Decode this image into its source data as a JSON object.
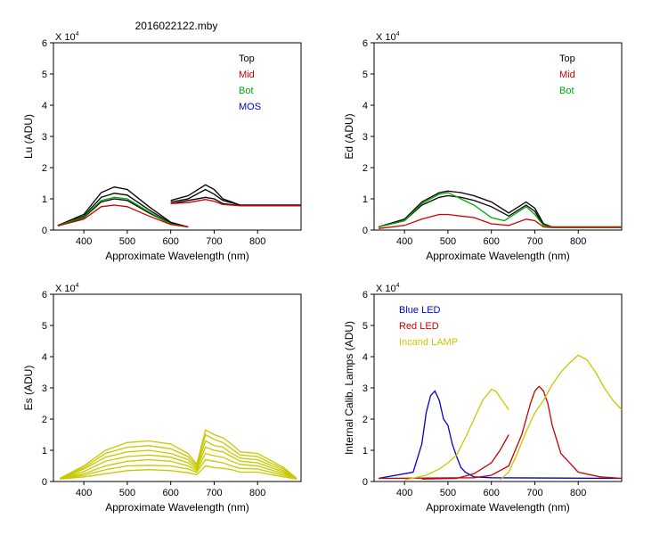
{
  "figure": {
    "title": "2016022122.mby"
  },
  "colors": {
    "black": "#000000",
    "red": "#cc0000",
    "green": "#00aa00",
    "blue": "#0000cc",
    "olive": "#c8c800"
  },
  "chart_data": [
    {
      "id": "lu",
      "type": "line",
      "ylabel": "Lu (ADU)",
      "xlabel": "Approximate Wavelength (nm)",
      "exponent_label": "X 10",
      "exponent_power": "4",
      "xlim": [
        330,
        900
      ],
      "ylim": [
        0,
        6
      ],
      "xticks": [
        400,
        500,
        600,
        700,
        800
      ],
      "yticks": [
        0,
        1,
        2,
        3,
        4,
        5,
        6
      ],
      "legend": [
        {
          "label": "Top",
          "color": "#000000"
        },
        {
          "label": "Mid",
          "color": "#cc0000"
        },
        {
          "label": "Bot",
          "color": "#00aa00"
        },
        {
          "label": "MOS",
          "color": "#0000cc"
        }
      ],
      "series": [
        {
          "name": "Top-1",
          "color": "#000000",
          "x": [
            340,
            400,
            440,
            470,
            500,
            550,
            600,
            640
          ],
          "y": [
            0.15,
            0.5,
            1.2,
            1.38,
            1.3,
            0.75,
            0.25,
            0.1
          ]
        },
        {
          "name": "Top-2",
          "color": "#000000",
          "x": [
            340,
            400,
            440,
            470,
            500,
            550,
            600,
            640
          ],
          "y": [
            0.15,
            0.45,
            1.05,
            1.18,
            1.12,
            0.65,
            0.22,
            0.1
          ]
        },
        {
          "name": "Top-3",
          "color": "#000000",
          "x": [
            340,
            400,
            440,
            470,
            500,
            550,
            600,
            640
          ],
          "y": [
            0.14,
            0.4,
            0.9,
            1.0,
            0.95,
            0.55,
            0.2,
            0.1
          ]
        },
        {
          "name": "Bot",
          "color": "#00aa00",
          "x": [
            340,
            400,
            440,
            470,
            500,
            550,
            600,
            640
          ],
          "y": [
            0.14,
            0.42,
            0.95,
            1.05,
            1.0,
            0.58,
            0.2,
            0.1
          ]
        },
        {
          "name": "Mid",
          "color": "#cc0000",
          "x": [
            340,
            400,
            440,
            470,
            500,
            550,
            600,
            640
          ],
          "y": [
            0.13,
            0.35,
            0.75,
            0.8,
            0.75,
            0.45,
            0.18,
            0.1
          ]
        },
        {
          "name": "Top-R1",
          "color": "#000000",
          "x": [
            600,
            640,
            680,
            700,
            720,
            760,
            800,
            900
          ],
          "y": [
            0.95,
            1.1,
            1.45,
            1.3,
            1.0,
            0.8,
            0.8,
            0.8
          ]
        },
        {
          "name": "Top-R2",
          "color": "#000000",
          "x": [
            600,
            640,
            680,
            700,
            720,
            760,
            800,
            900
          ],
          "y": [
            0.9,
            1.0,
            1.3,
            1.15,
            0.95,
            0.8,
            0.8,
            0.8
          ]
        },
        {
          "name": "Top-R3",
          "color": "#000000",
          "x": [
            600,
            640,
            680,
            700,
            720,
            760,
            800,
            900
          ],
          "y": [
            0.85,
            0.95,
            1.05,
            1.0,
            0.85,
            0.78,
            0.78,
            0.78
          ]
        },
        {
          "name": "Mid-R",
          "color": "#cc0000",
          "x": [
            600,
            640,
            680,
            700,
            720,
            760,
            800,
            900
          ],
          "y": [
            0.85,
            0.88,
            0.98,
            0.92,
            0.82,
            0.78,
            0.78,
            0.78
          ]
        }
      ]
    },
    {
      "id": "ed",
      "type": "line",
      "ylabel": "Ed  (ADU)",
      "xlabel": "Approximate Wavelength (nm)",
      "exponent_label": "X 10",
      "exponent_power": "4",
      "xlim": [
        330,
        900
      ],
      "ylim": [
        0,
        6
      ],
      "xticks": [
        400,
        500,
        600,
        700,
        800
      ],
      "yticks": [
        0,
        1,
        2,
        3,
        4,
        5,
        6
      ],
      "legend": [
        {
          "label": "Top",
          "color": "#000000"
        },
        {
          "label": "Mid",
          "color": "#cc0000"
        },
        {
          "label": "Bot",
          "color": "#00aa00"
        }
      ],
      "series": [
        {
          "name": "Top-1",
          "color": "#000000",
          "x": [
            340,
            400,
            440,
            480,
            500,
            530,
            560,
            600,
            640,
            680,
            700,
            720,
            740,
            760,
            900
          ],
          "y": [
            0.1,
            0.35,
            0.9,
            1.2,
            1.25,
            1.2,
            1.1,
            0.9,
            0.55,
            0.9,
            0.7,
            0.2,
            0.1,
            0.1,
            0.1
          ]
        },
        {
          "name": "Top-2",
          "color": "#000000",
          "x": [
            340,
            400,
            440,
            480,
            500,
            530,
            560,
            600,
            640,
            680,
            700,
            720,
            740,
            760,
            900
          ],
          "y": [
            0.1,
            0.3,
            0.8,
            1.05,
            1.1,
            1.05,
            0.95,
            0.75,
            0.45,
            0.8,
            0.6,
            0.15,
            0.1,
            0.1,
            0.1
          ]
        },
        {
          "name": "Bot",
          "color": "#00aa00",
          "x": [
            340,
            400,
            440,
            480,
            500,
            530,
            560,
            600,
            630,
            680,
            700,
            720,
            740,
            900
          ],
          "y": [
            0.1,
            0.3,
            0.85,
            1.15,
            1.2,
            1.0,
            0.8,
            0.4,
            0.3,
            0.75,
            0.5,
            0.15,
            0.1,
            0.1
          ]
        },
        {
          "name": "Mid",
          "color": "#cc0000",
          "x": [
            340,
            400,
            440,
            480,
            500,
            530,
            560,
            600,
            640,
            680,
            700,
            720,
            740,
            900
          ],
          "y": [
            0.05,
            0.15,
            0.35,
            0.5,
            0.5,
            0.45,
            0.4,
            0.2,
            0.15,
            0.35,
            0.3,
            0.1,
            0.08,
            0.08
          ]
        }
      ]
    },
    {
      "id": "es",
      "type": "line",
      "ylabel": "Es  (ADU)",
      "xlabel": "Approximate Wavelength (nm)",
      "exponent_label": "X 10",
      "exponent_power": "4",
      "xlim": [
        330,
        900
      ],
      "ylim": [
        0,
        6
      ],
      "xticks": [
        400,
        500,
        600,
        700,
        800
      ],
      "yticks": [
        0,
        1,
        2,
        3,
        4,
        5,
        6
      ],
      "legend": [],
      "series": [
        {
          "name": "Es-1",
          "color": "#c8c800",
          "x": [
            345,
            400,
            450,
            500,
            550,
            600,
            640,
            660,
            680,
            700,
            720,
            740,
            760,
            800,
            860,
            890
          ],
          "y": [
            0.1,
            0.5,
            1.0,
            1.25,
            1.3,
            1.2,
            0.9,
            0.55,
            1.65,
            1.5,
            1.4,
            1.2,
            0.95,
            0.9,
            0.45,
            0.1
          ]
        },
        {
          "name": "Es-2",
          "color": "#c8c800",
          "x": [
            345,
            400,
            450,
            500,
            550,
            600,
            640,
            660,
            680,
            700,
            720,
            740,
            760,
            800,
            860,
            890
          ],
          "y": [
            0.1,
            0.45,
            0.9,
            1.1,
            1.15,
            1.05,
            0.8,
            0.5,
            1.5,
            1.35,
            1.25,
            1.05,
            0.85,
            0.8,
            0.4,
            0.1
          ]
        },
        {
          "name": "Es-3",
          "color": "#c8c800",
          "x": [
            345,
            400,
            450,
            500,
            550,
            600,
            640,
            660,
            680,
            700,
            720,
            740,
            760,
            800,
            860,
            890
          ],
          "y": [
            0.1,
            0.4,
            0.78,
            0.95,
            1.0,
            0.9,
            0.7,
            0.45,
            1.3,
            1.15,
            1.1,
            0.9,
            0.75,
            0.7,
            0.35,
            0.1
          ]
        },
        {
          "name": "Es-4",
          "color": "#c8c800",
          "x": [
            345,
            400,
            450,
            500,
            550,
            600,
            640,
            660,
            680,
            700,
            720,
            740,
            760,
            800,
            860,
            890
          ],
          "y": [
            0.1,
            0.32,
            0.65,
            0.8,
            0.85,
            0.78,
            0.6,
            0.4,
            1.1,
            1.0,
            0.95,
            0.8,
            0.65,
            0.6,
            0.3,
            0.1
          ]
        },
        {
          "name": "Es-5",
          "color": "#c8c800",
          "x": [
            345,
            400,
            450,
            500,
            550,
            600,
            640,
            660,
            680,
            700,
            720,
            740,
            760,
            800,
            860,
            890
          ],
          "y": [
            0.1,
            0.25,
            0.5,
            0.65,
            0.7,
            0.65,
            0.5,
            0.35,
            0.9,
            0.82,
            0.78,
            0.65,
            0.55,
            0.5,
            0.25,
            0.1
          ]
        },
        {
          "name": "Es-6",
          "color": "#c8c800",
          "x": [
            345,
            400,
            450,
            500,
            550,
            600,
            640,
            660,
            680,
            700,
            720,
            740,
            760,
            800,
            860,
            890
          ],
          "y": [
            0.1,
            0.2,
            0.38,
            0.5,
            0.52,
            0.5,
            0.4,
            0.3,
            0.7,
            0.65,
            0.6,
            0.5,
            0.42,
            0.4,
            0.2,
            0.1
          ]
        },
        {
          "name": "Es-7",
          "color": "#c8c800",
          "x": [
            345,
            400,
            450,
            500,
            550,
            600,
            640,
            660,
            680,
            700,
            720,
            740,
            760,
            800,
            860,
            890
          ],
          "y": [
            0.08,
            0.15,
            0.25,
            0.35,
            0.38,
            0.35,
            0.28,
            0.22,
            0.5,
            0.45,
            0.42,
            0.38,
            0.3,
            0.3,
            0.15,
            0.08
          ]
        }
      ]
    },
    {
      "id": "lamps",
      "type": "line",
      "ylabel": "Internal Calib. Lamps (ADU)",
      "xlabel": "Approximate Wavelength (nm)",
      "exponent_label": "X 10",
      "exponent_power": "4",
      "xlim": [
        330,
        900
      ],
      "ylim": [
        0,
        6
      ],
      "xticks": [
        400,
        500,
        600,
        700,
        800
      ],
      "yticks": [
        0,
        1,
        2,
        3,
        4,
        5,
        6
      ],
      "legend": [
        {
          "label": "Blue LED",
          "color": "#0000cc"
        },
        {
          "label": "Red LED",
          "color": "#cc0000"
        },
        {
          "label": "Incand LAMP",
          "color": "#c8c800"
        }
      ],
      "series": [
        {
          "name": "Blue LED",
          "color": "#0000cc",
          "x": [
            340,
            420,
            440,
            450,
            460,
            470,
            480,
            490,
            500,
            510,
            520,
            530,
            540,
            560,
            600,
            900
          ],
          "y": [
            0.1,
            0.3,
            1.2,
            2.2,
            2.75,
            2.9,
            2.6,
            2.0,
            1.8,
            1.2,
            0.8,
            0.45,
            0.3,
            0.15,
            0.12,
            0.1
          ]
        },
        {
          "name": "Red LED",
          "color": "#cc0000",
          "x": [
            340,
            560,
            600,
            640,
            670,
            690,
            700,
            710,
            720,
            730,
            740,
            760,
            800,
            850,
            900
          ],
          "y": [
            0.1,
            0.12,
            0.2,
            0.5,
            1.5,
            2.5,
            2.9,
            3.05,
            2.9,
            2.5,
            1.8,
            0.9,
            0.3,
            0.15,
            0.1
          ]
        },
        {
          "name": "Red LED-low",
          "color": "#cc0000",
          "x": [
            440,
            520,
            560,
            600,
            620,
            640
          ],
          "y": [
            0.08,
            0.1,
            0.25,
            0.6,
            1.0,
            1.5
          ]
        },
        {
          "name": "Incand LAMP",
          "color": "#c8c800",
          "x": [
            400,
            450,
            480,
            500,
            520,
            540,
            560,
            580,
            600,
            610,
            620,
            640
          ],
          "y": [
            0.05,
            0.2,
            0.4,
            0.6,
            0.85,
            1.4,
            2.0,
            2.6,
            2.95,
            2.9,
            2.7,
            2.3
          ]
        },
        {
          "name": "Incand LAMP-high",
          "color": "#c8c800",
          "x": [
            620,
            640,
            660,
            680,
            700,
            720,
            740,
            760,
            780,
            800,
            820,
            840,
            860,
            880,
            900
          ],
          "y": [
            0.05,
            0.3,
            0.9,
            1.6,
            2.2,
            2.6,
            3.1,
            3.5,
            3.8,
            4.05,
            3.9,
            3.5,
            3.0,
            2.6,
            2.3
          ]
        }
      ]
    }
  ]
}
